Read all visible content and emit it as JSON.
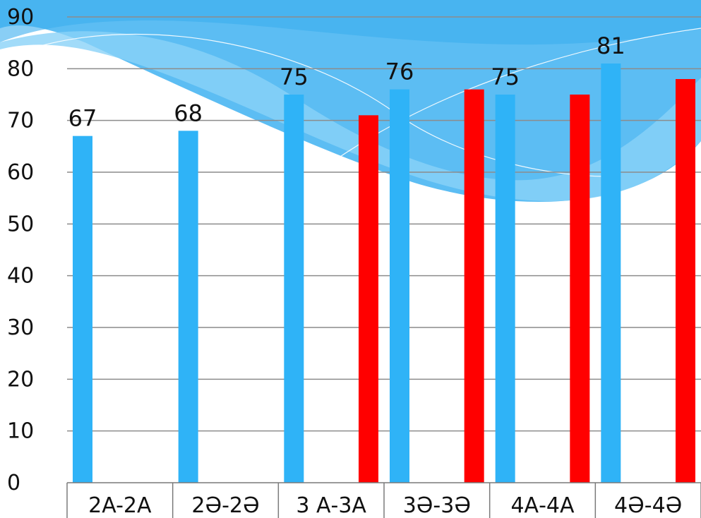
{
  "chart_data": {
    "type": "bar",
    "categories": [
      "2A-2A",
      "2Ә-2Ә",
      "3 А-3А",
      "3Ә-3Ә",
      "4А-4А",
      "4Ә-4Ә"
    ],
    "series": [
      {
        "color": "#2fb3f7",
        "values": [
          67,
          68,
          75,
          76,
          75,
          81
        ],
        "labels": [
          "67",
          "68",
          "75",
          "76",
          "75",
          "81"
        ]
      },
      {
        "color": "#ff0000",
        "values": [
          null,
          null,
          71,
          76,
          75,
          78
        ]
      }
    ],
    "ylim": [
      0,
      90
    ],
    "yticks": [
      0,
      10,
      20,
      30,
      40,
      50,
      60,
      70,
      80,
      90
    ],
    "grid": true,
    "title": "",
    "xlabel": "",
    "ylabel": ""
  }
}
